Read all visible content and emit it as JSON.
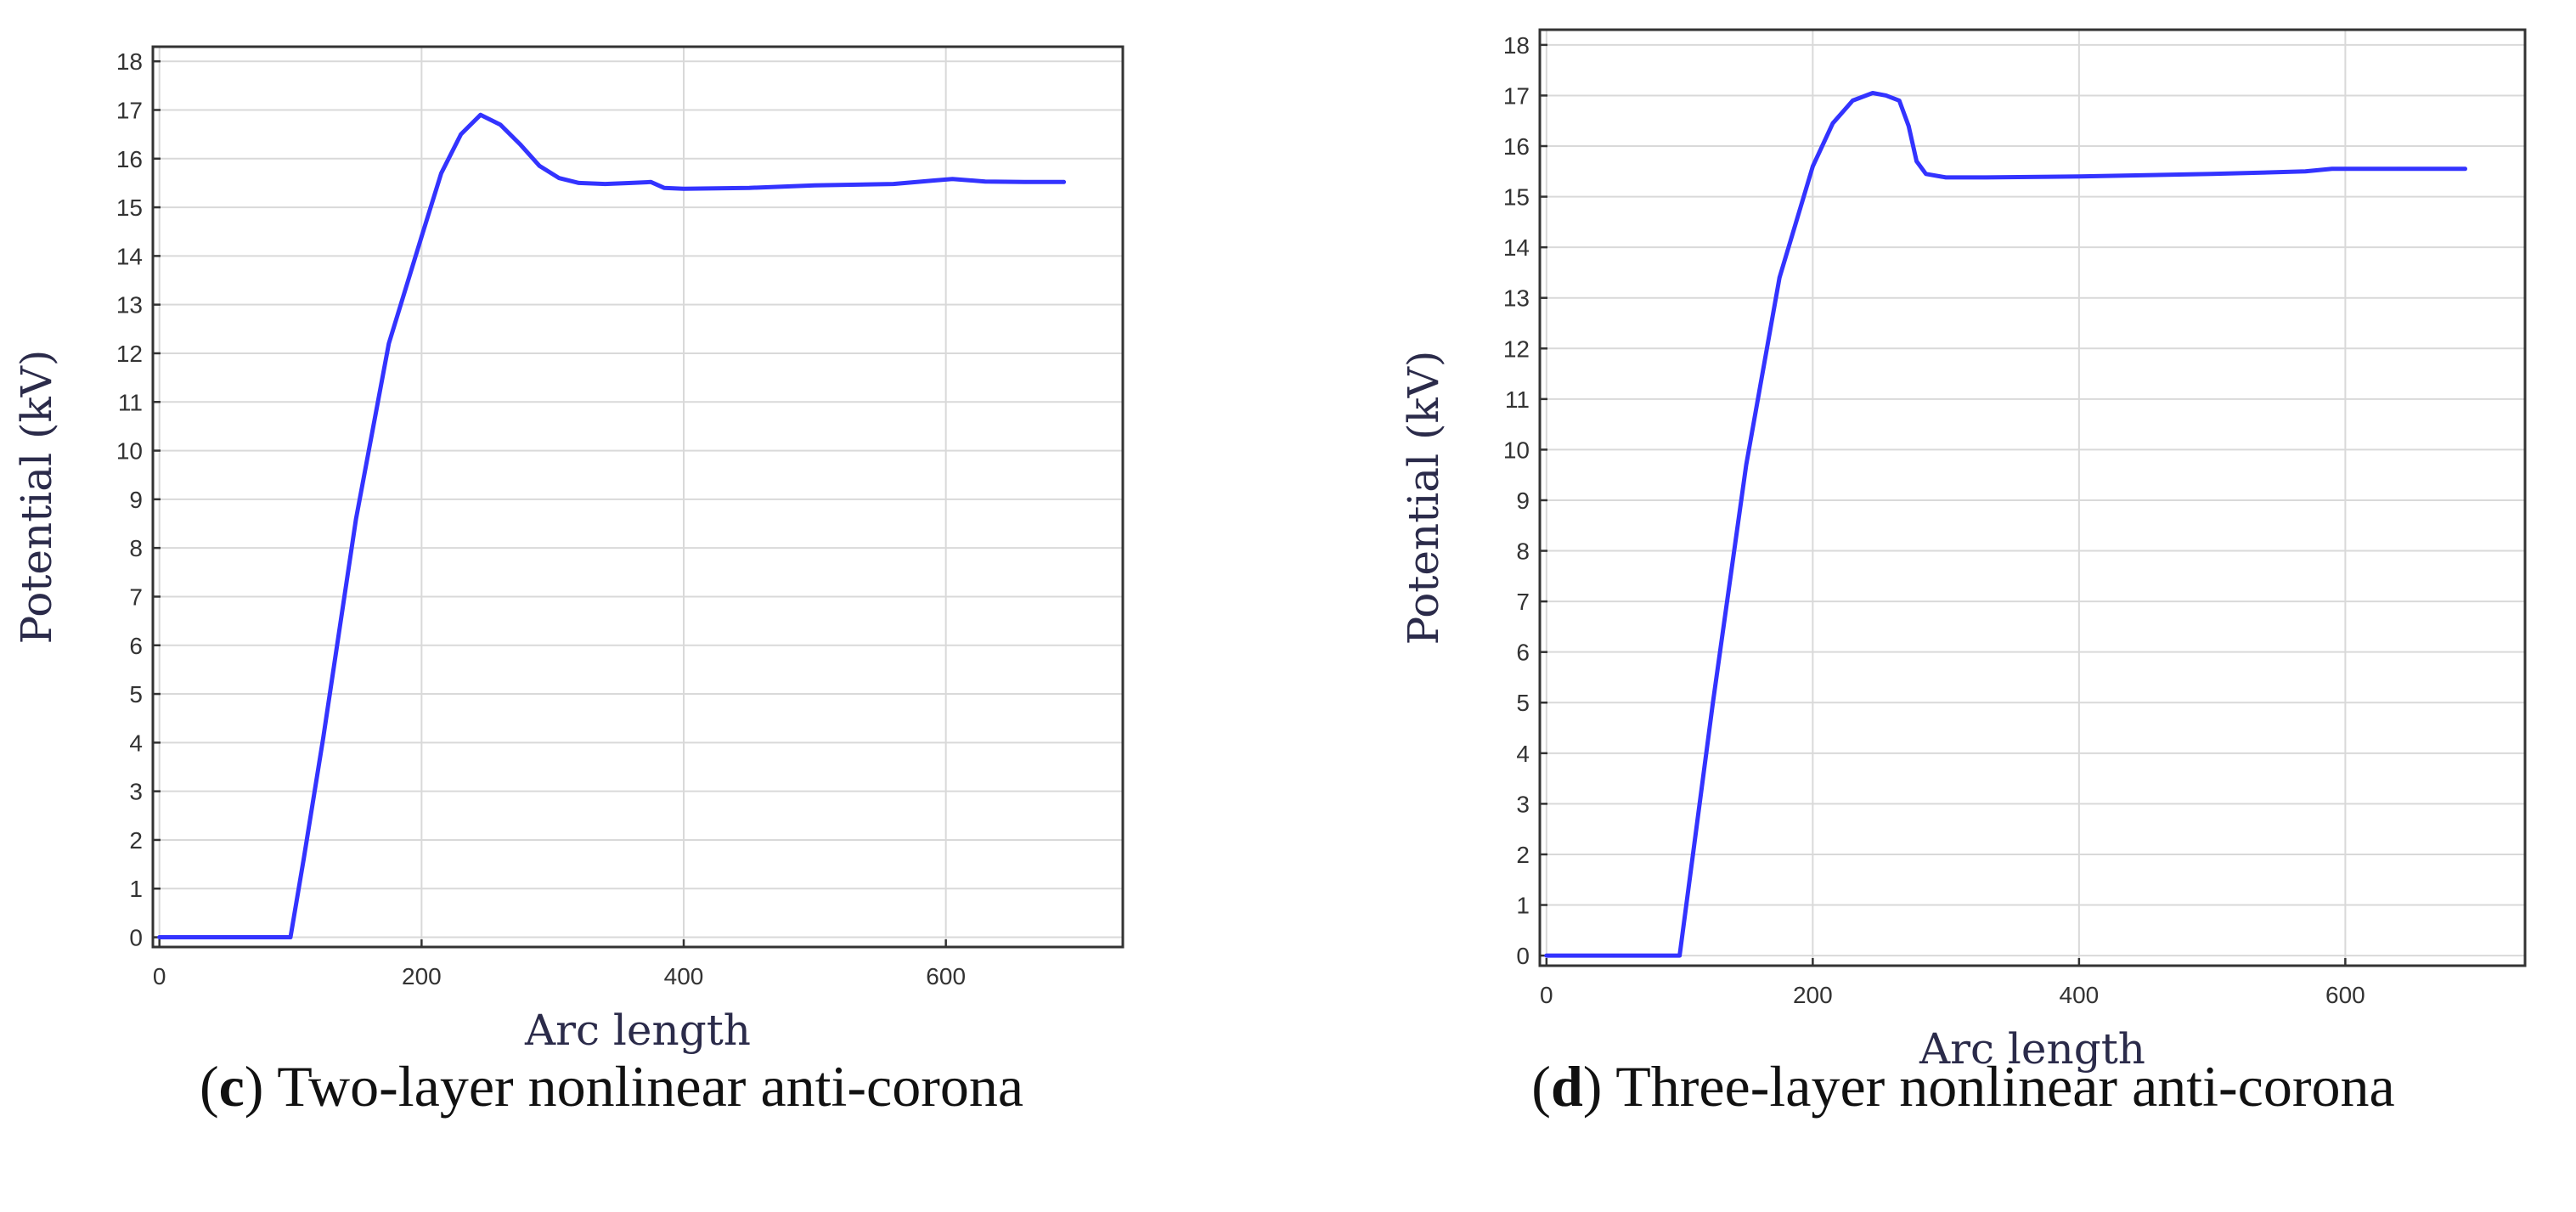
{
  "chart_data": [
    {
      "type": "line",
      "panel_letter": "c",
      "caption": "Two-layer nonlinear anti-corona",
      "xlabel": "Arc length",
      "ylabel": "Potential (kV)",
      "xlim": [
        -5,
        735
      ],
      "ylim": [
        -0.2,
        18.3
      ],
      "xticks": [
        0,
        200,
        400,
        600
      ],
      "yticks": [
        0,
        1,
        2,
        3,
        4,
        5,
        6,
        7,
        8,
        9,
        10,
        11,
        12,
        13,
        14,
        15,
        16,
        17,
        18
      ],
      "grid": true,
      "series": [
        {
          "name": "Potential",
          "color": "#3333ff",
          "x": [
            0,
            50,
            100,
            110,
            125,
            150,
            175,
            200,
            215,
            230,
            245,
            260,
            275,
            290,
            305,
            320,
            340,
            360,
            375,
            385,
            400,
            450,
            500,
            560,
            590,
            605,
            630,
            660,
            690
          ],
          "y": [
            0,
            0,
            0,
            1.6,
            4.1,
            8.6,
            12.2,
            14.4,
            15.7,
            16.5,
            16.9,
            16.7,
            16.3,
            15.85,
            15.6,
            15.5,
            15.48,
            15.5,
            15.52,
            15.4,
            15.38,
            15.4,
            15.45,
            15.48,
            15.55,
            15.58,
            15.53,
            15.52,
            15.52
          ]
        }
      ]
    },
    {
      "type": "line",
      "panel_letter": "d",
      "caption": "Three-layer nonlinear anti-corona",
      "xlabel": "Arc length",
      "ylabel": "Potential (kV)",
      "xlim": [
        -5,
        735
      ],
      "ylim": [
        -0.2,
        18.3
      ],
      "xticks": [
        0,
        200,
        400,
        600
      ],
      "yticks": [
        0,
        1,
        2,
        3,
        4,
        5,
        6,
        7,
        8,
        9,
        10,
        11,
        12,
        13,
        14,
        15,
        16,
        17,
        18
      ],
      "grid": true,
      "series": [
        {
          "name": "Potential",
          "color": "#3333ff",
          "x": [
            0,
            50,
            100,
            110,
            125,
            150,
            175,
            200,
            215,
            230,
            245,
            255,
            265,
            272,
            278,
            285,
            300,
            330,
            400,
            500,
            570,
            590,
            640,
            690
          ],
          "y": [
            0,
            0,
            0,
            2.0,
            5.0,
            9.7,
            13.4,
            15.6,
            16.45,
            16.9,
            17.05,
            17.0,
            16.9,
            16.4,
            15.7,
            15.45,
            15.38,
            15.38,
            15.4,
            15.45,
            15.5,
            15.55,
            15.55,
            15.55
          ]
        }
      ]
    }
  ]
}
